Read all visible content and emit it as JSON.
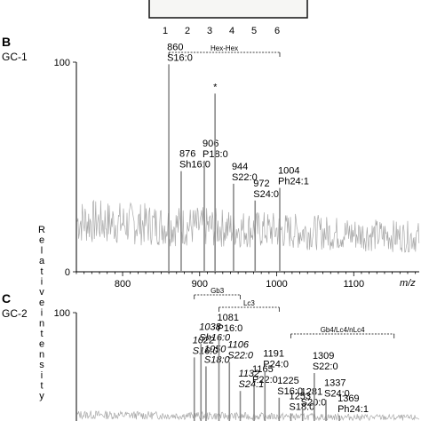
{
  "gel": {
    "lanes": [
      "1",
      "2",
      "3",
      "4",
      "5",
      "6"
    ]
  },
  "y_axis_label": "Relative intensity",
  "colors": {
    "trace": "#a9a9a9",
    "axis": "#000000"
  },
  "chart_data": [
    {
      "type": "line",
      "panel": "B",
      "sample": "GC-1",
      "xlabel": "m/z",
      "xlim": [
        740,
        1185
      ],
      "ylim": [
        0,
        100
      ],
      "x_ticks": [
        "800",
        "900",
        "1000",
        "1100"
      ],
      "y_ticks": [
        "0",
        "100"
      ],
      "noise_baseline": 22,
      "brackets": [
        {
          "label": "Hex-Hex",
          "from": 860,
          "to": 1004
        }
      ],
      "peaks": [
        {
          "x": 860,
          "y": 99,
          "labels": [
            "860",
            "S16:0"
          ]
        },
        {
          "x": 876,
          "y": 48,
          "labels": [
            "876",
            "Sh16:0"
          ]
        },
        {
          "x": 906,
          "y": 53,
          "labels": [
            "906",
            "P18:0"
          ]
        },
        {
          "x": 920,
          "y": 85,
          "labels": [
            "*"
          ]
        },
        {
          "x": 944,
          "y": 42,
          "labels": [
            "944",
            "S22:0"
          ]
        },
        {
          "x": 972,
          "y": 34,
          "labels": [
            "972",
            "S24:0"
          ]
        },
        {
          "x": 1004,
          "y": 40,
          "labels": [
            "1004",
            "Ph24:1"
          ]
        }
      ]
    },
    {
      "type": "line",
      "panel": "C",
      "sample": "GC-2",
      "xlim": [
        740,
        1560
      ],
      "ylim": [
        0,
        100
      ],
      "y_ticks": [
        "100"
      ],
      "noise_baseline": 8,
      "brackets": [
        {
          "label": "Gb3",
          "from": 1022,
          "to": 1132
        },
        {
          "label": "Lc3",
          "from": 1081,
          "to": 1225
        },
        {
          "label": "Gb4/Lc4/nLc4",
          "from": 1253,
          "to": 1500
        }
      ],
      "peaks": [
        {
          "x": 1022,
          "y": 60,
          "labels": [
            "1022",
            "S16:0"
          ],
          "italic": true
        },
        {
          "x": 1038,
          "y": 72,
          "labels": [
            "1038",
            "Sh16:0"
          ],
          "italic": true
        },
        {
          "x": 1050,
          "y": 52,
          "labels": [
            "1050",
            "S18:0"
          ],
          "italic": true
        },
        {
          "x": 1081,
          "y": 80,
          "labels": [
            "1081",
            "P16:0"
          ]
        },
        {
          "x": 1106,
          "y": 56,
          "labels": [
            "1106",
            "S22:0"
          ],
          "italic": true
        },
        {
          "x": 1132,
          "y": 30,
          "labels": [
            "1132",
            "S24:1"
          ],
          "italic": true
        },
        {
          "x": 1165,
          "y": 34,
          "labels": [
            "1165",
            "P22:0"
          ]
        },
        {
          "x": 1191,
          "y": 48,
          "labels": [
            "1191",
            "P24:0"
          ]
        },
        {
          "x": 1225,
          "y": 24,
          "labels": [
            "1225",
            "S16:0"
          ]
        },
        {
          "x": 1253,
          "y": 10,
          "labels": [
            "1253",
            "S18:0"
          ]
        },
        {
          "x": 1281,
          "y": 14,
          "labels": [
            "1281",
            "S20:0"
          ]
        },
        {
          "x": 1309,
          "y": 46,
          "labels": [
            "1309",
            "S22:0"
          ]
        },
        {
          "x": 1337,
          "y": 22,
          "labels": [
            "1337",
            "S24:0"
          ]
        },
        {
          "x": 1369,
          "y": 8,
          "labels": [
            "1369",
            "Ph24:1"
          ]
        }
      ]
    }
  ]
}
